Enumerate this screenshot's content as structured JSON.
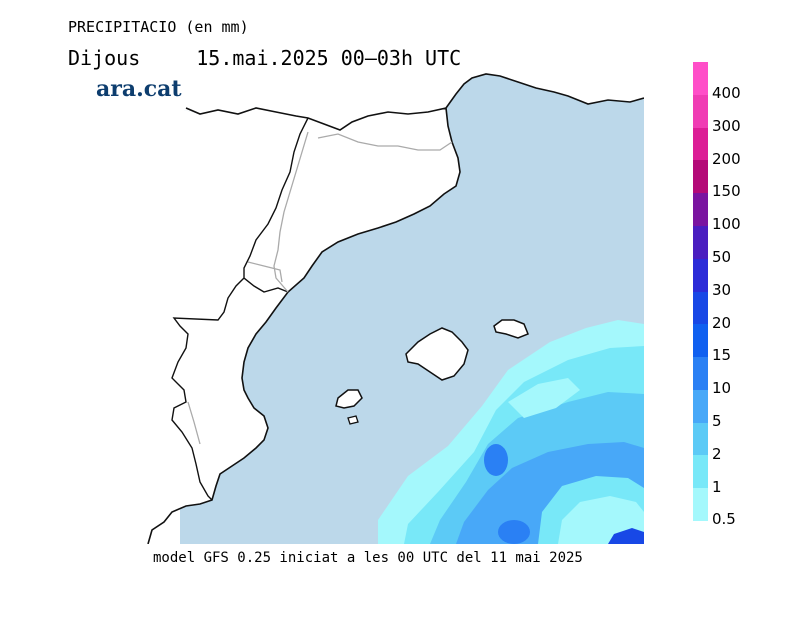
{
  "header": {
    "variable": "PRECIPITACIO (en mm)",
    "day": "Dijous",
    "date_range": "15.mai.2025 00–03h UTC"
  },
  "brand": "ara.cat",
  "footer": "model GFS 0.25 iniciat a les 00 UTC del 11 mai 2025",
  "legend": {
    "labels": [
      "400",
      "300",
      "200",
      "150",
      "100",
      "50",
      "30",
      "20",
      "15",
      "10",
      "5",
      "2",
      "1",
      "0.5"
    ],
    "colors": [
      "#ff4ec8",
      "#f03cb4",
      "#dc1e96",
      "#b40a78",
      "#7a14a0",
      "#4a1ec0",
      "#2c2cd8",
      "#1848e6",
      "#1060f0",
      "#2a80f4",
      "#48a8f8",
      "#5ccaf6",
      "#78e8f8",
      "#a4f8fc"
    ]
  },
  "map_colors": {
    "sea": "#bcd8ea",
    "land": "#ffffff",
    "coast": "#111111",
    "border": "#aaaaaa"
  }
}
